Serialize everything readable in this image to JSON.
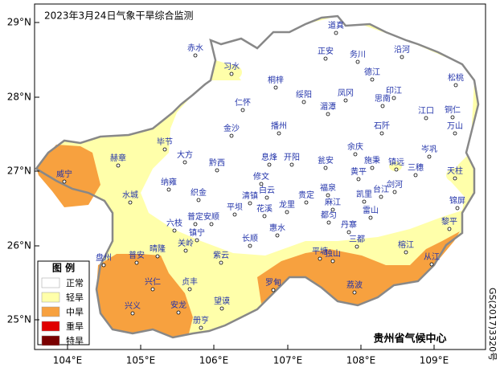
{
  "title": "2023年3月24日气象干旱综合监测",
  "axes": {
    "lat_labels": [
      "29°N",
      "28°N",
      "27°N",
      "26°N",
      "25°N"
    ],
    "lon_labels": [
      "104°E",
      "105°E",
      "106°E",
      "107°E",
      "108°E",
      "109°E"
    ]
  },
  "legend": {
    "title": "图 例",
    "items": [
      {
        "label": "正常",
        "color": "#ffffff"
      },
      {
        "label": "轻旱",
        "color": "#ffffaa"
      },
      {
        "label": "中旱",
        "color": "#f7a13f"
      },
      {
        "label": "重旱",
        "color": "#e00000"
      },
      {
        "label": "特旱",
        "color": "#7a0000"
      }
    ]
  },
  "cities": [
    "道真",
    "赤水",
    "习水",
    "正安",
    "务川",
    "沿河",
    "松桃",
    "桐梓",
    "绥阳",
    "凤冈",
    "德江",
    "印江",
    "思南",
    "仁怀",
    "湄潭",
    "江口",
    "铜仁",
    "万山",
    "金沙",
    "播州",
    "石阡",
    "毕节",
    "余庆",
    "岑巩",
    "大方",
    "黔西",
    "息烽",
    "开阳",
    "瓮安",
    "施秉",
    "镇远",
    "三穗",
    "赫章",
    "天柱",
    "威宁",
    "修文",
    "黄平",
    "剑河",
    "台江",
    "纳雍",
    "织金",
    "清镇",
    "白云",
    "福泉",
    "凯里",
    "锦屏",
    "水城",
    "平坝",
    "花溪",
    "龙里",
    "贵定",
    "麻江",
    "雷山",
    "都匀",
    "六枝",
    "普定",
    "安顺",
    "长顺",
    "惠水",
    "丹寨",
    "黎平",
    "镇宁",
    "关岭",
    "三都",
    "榕江",
    "盘州",
    "普安",
    "晴隆",
    "紫云",
    "平塘",
    "独山",
    "从江",
    "兴仁",
    "贞丰",
    "罗甸",
    "荔波",
    "安龙",
    "兴义",
    "望谟",
    "册亨"
  ],
  "credit": "贵州省气候中心",
  "map_number": "GS(2017)3320号"
}
